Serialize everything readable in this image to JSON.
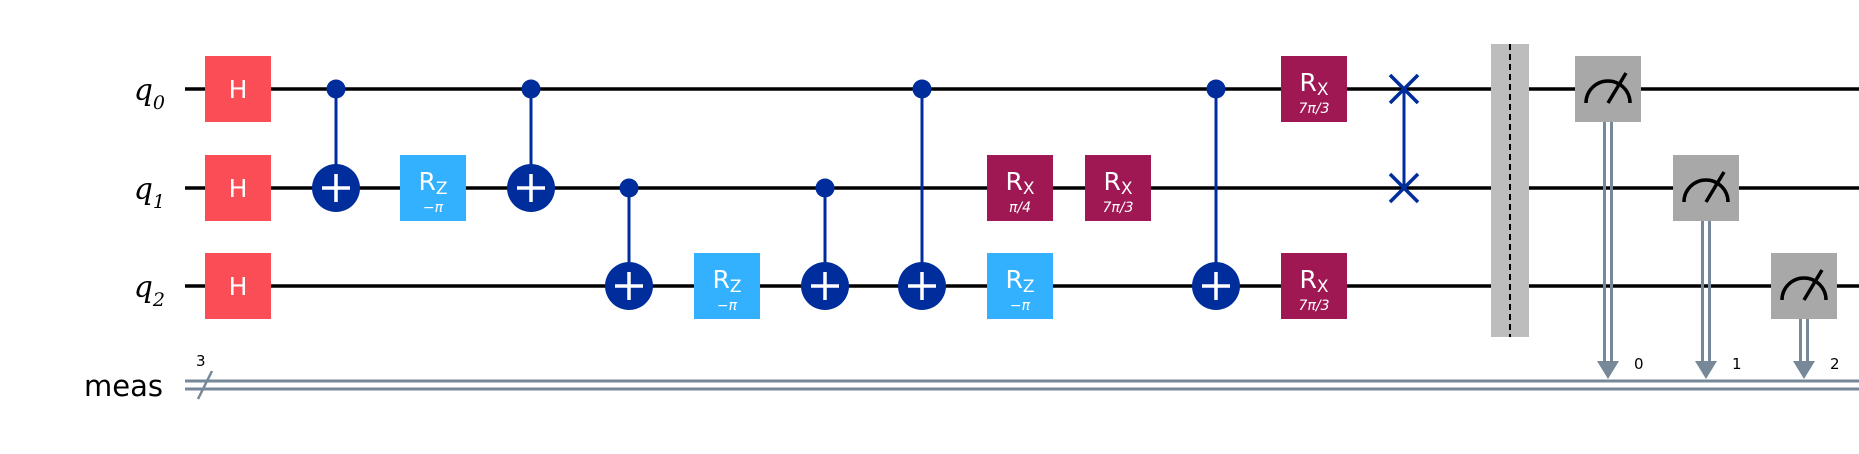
{
  "qubits": [
    {
      "base": "q",
      "sub": "0"
    },
    {
      "base": "q",
      "sub": "1"
    },
    {
      "base": "q",
      "sub": "2"
    }
  ],
  "classical_register": {
    "name": "meas",
    "size": "3"
  },
  "gate_labels": {
    "h": "H",
    "rx_base": "R",
    "rx_sub": "X",
    "rz_base": "R",
    "rz_sub": "Z"
  },
  "params": {
    "rz_minus_pi": "−π",
    "rx_pi_4": "π/4",
    "rx_7pi_3": "7π/3"
  },
  "measure_bits": [
    "0",
    "1",
    "2"
  ],
  "colors": {
    "h_gate": "#fa4d56",
    "rz_gate": "#33b1ff",
    "rx_gate": "#9f1853",
    "control": "#002d9c",
    "measure": "#a8a8a8",
    "barrier": "#bdbdbd",
    "classical_wire": "#778899",
    "wire": "#000000"
  },
  "columns": [
    [
      {
        "type": "h",
        "q": 0
      },
      {
        "type": "h",
        "q": 1
      },
      {
        "type": "h",
        "q": 2
      }
    ],
    [
      {
        "type": "cx",
        "c": 0,
        "t": 1
      }
    ],
    [
      {
        "type": "rz",
        "q": 1,
        "param": "rz_minus_pi"
      }
    ],
    [
      {
        "type": "cx",
        "c": 0,
        "t": 1
      }
    ],
    [
      {
        "type": "cx",
        "c": 1,
        "t": 2
      }
    ],
    [
      {
        "type": "rz",
        "q": 2,
        "param": "rz_minus_pi"
      }
    ],
    [
      {
        "type": "cx",
        "c": 1,
        "t": 2
      }
    ],
    [
      {
        "type": "cx",
        "c": 0,
        "t": 2
      }
    ],
    [
      {
        "type": "rx",
        "q": 1,
        "param": "rx_pi_4"
      },
      {
        "type": "rz",
        "q": 2,
        "param": "rz_minus_pi"
      }
    ],
    [
      {
        "type": "rx",
        "q": 1,
        "param": "rx_7pi_3"
      }
    ],
    [
      {
        "type": "cx",
        "c": 0,
        "t": 2
      }
    ],
    [
      {
        "type": "rx",
        "q": 0,
        "param": "rx_7pi_3"
      },
      {
        "type": "rx",
        "q": 2,
        "param": "rx_7pi_3"
      }
    ],
    [
      {
        "type": "swap",
        "a": 0,
        "b": 1
      }
    ],
    [
      {
        "type": "barrier"
      }
    ],
    [
      {
        "type": "measure",
        "q": 0,
        "bit": 0
      }
    ],
    [
      {
        "type": "measure",
        "q": 1,
        "bit": 1
      }
    ],
    [
      {
        "type": "measure",
        "q": 2,
        "bit": 2
      }
    ]
  ]
}
